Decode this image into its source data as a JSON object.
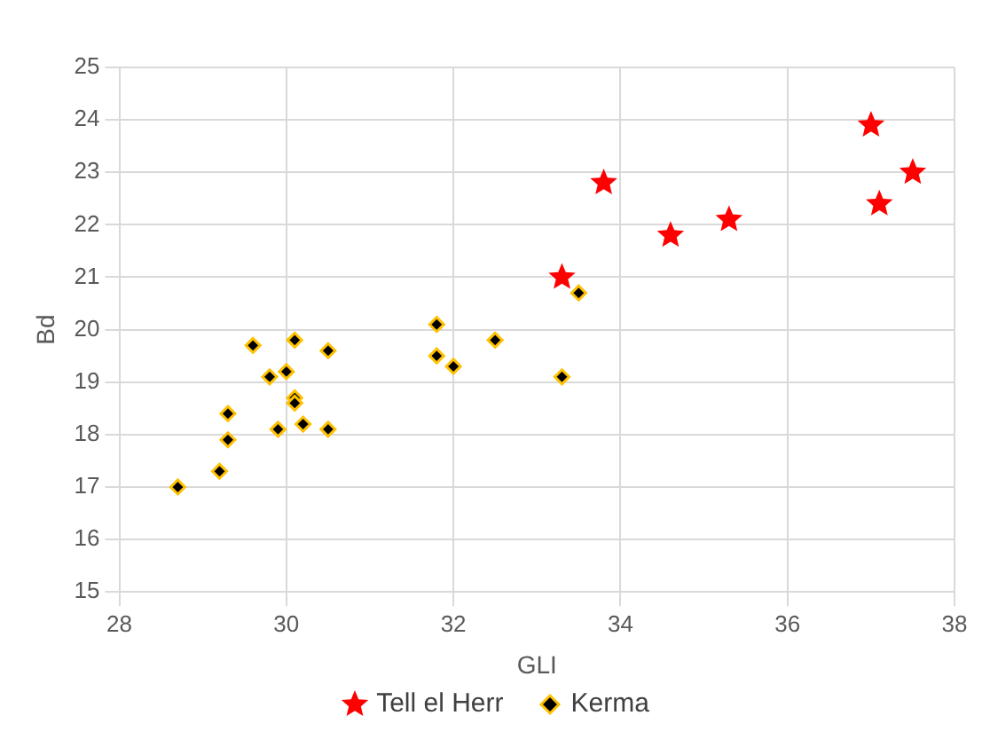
{
  "chart_data": {
    "type": "scatter",
    "xlabel": "GLI",
    "ylabel": "Bd",
    "xlim": [
      28,
      38
    ],
    "xticks": [
      28,
      30,
      32,
      34,
      36,
      38
    ],
    "ylim": [
      15,
      25
    ],
    "yticks": [
      15,
      16,
      17,
      18,
      19,
      20,
      21,
      22,
      23,
      24,
      25
    ],
    "grid": true,
    "legend": "bottom",
    "series": [
      {
        "name": "Tell el Herr",
        "color": "#ff0000",
        "marker": "star",
        "x": [
          33.3,
          33.8,
          34.6,
          35.3,
          37.0,
          37.1,
          37.5
        ],
        "values": [
          21.0,
          22.8,
          21.8,
          22.1,
          23.9,
          22.4,
          23.0
        ]
      },
      {
        "name": "Kerma",
        "color": "#000000",
        "marker": "diamond",
        "x": [
          28.7,
          29.2,
          29.3,
          29.3,
          29.6,
          29.8,
          29.9,
          30.0,
          30.1,
          30.1,
          30.1,
          30.2,
          30.5,
          30.5,
          31.8,
          31.8,
          32.0,
          32.5,
          33.3,
          33.5
        ],
        "values": [
          17.0,
          17.3,
          17.9,
          18.4,
          19.7,
          19.1,
          18.1,
          19.2,
          19.8,
          18.7,
          18.6,
          18.2,
          19.6,
          18.1,
          20.1,
          19.5,
          19.3,
          19.8,
          19.1,
          20.7
        ]
      }
    ]
  }
}
